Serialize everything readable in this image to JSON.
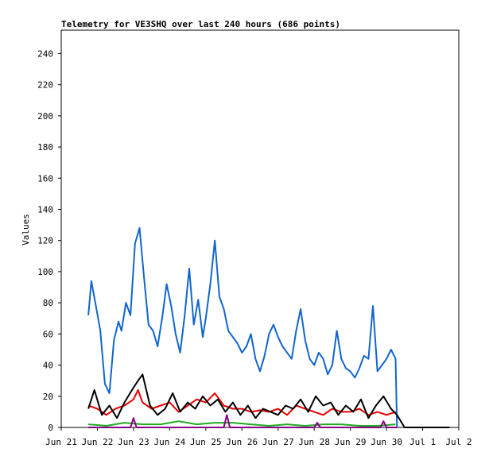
{
  "chart_data": {
    "type": "line",
    "title": "Telemetry for VE3SHQ over last 240 hours (686 points)",
    "xlabel": "",
    "ylabel": "Values",
    "grid": false,
    "legend": "none",
    "xlim": [
      "2024-06-21",
      "2024-07-02"
    ],
    "ylim": [
      0,
      255
    ],
    "x_ticks": [
      "2024-06-21",
      "2024-06-22",
      "2024-06-23",
      "2024-06-24",
      "2024-06-25",
      "2024-06-26",
      "2024-06-27",
      "2024-06-28",
      "2024-06-29",
      "2024-06-30",
      "2024-07-01",
      "2024-07-02"
    ],
    "x_tick_labels": [
      "Jun 21",
      "Jun 22",
      "Jun 23",
      "Jun 24",
      "Jun 25",
      "Jun 26",
      "Jun 27",
      "Jun 28",
      "Jun 29",
      "Jun 30",
      "Jul 1",
      "Jul 2"
    ],
    "y_ticks": [
      0,
      20,
      40,
      60,
      80,
      100,
      120,
      140,
      160,
      180,
      200,
      220,
      240
    ],
    "series": [
      {
        "color": "#1166cc",
        "x": [
          "2024-06-21T18:00",
          "2024-06-21T20:00",
          "2024-06-21T23:00",
          "2024-06-22T02:00",
          "2024-06-22T05:00",
          "2024-06-22T08:00",
          "2024-06-22T11:00",
          "2024-06-22T14:00",
          "2024-06-22T16:00",
          "2024-06-22T19:00",
          "2024-06-22T22:00",
          "2024-06-23T01:00",
          "2024-06-23T04:00",
          "2024-06-23T07:00",
          "2024-06-23T10:00",
          "2024-06-23T13:00",
          "2024-06-23T16:00",
          "2024-06-23T19:00",
          "2024-06-23T22:00",
          "2024-06-24T01:00",
          "2024-06-24T04:00",
          "2024-06-24T07:00",
          "2024-06-24T10:00",
          "2024-06-24T13:00",
          "2024-06-24T16:00",
          "2024-06-24T19:00",
          "2024-06-24T22:00",
          "2024-06-25T00:00",
          "2024-06-25T03:00",
          "2024-06-25T06:00",
          "2024-06-25T09:00",
          "2024-06-25T12:00",
          "2024-06-25T15:00",
          "2024-06-25T18:00",
          "2024-06-25T21:00",
          "2024-06-26T00:00",
          "2024-06-26T03:00",
          "2024-06-26T06:00",
          "2024-06-26T09:00",
          "2024-06-26T12:00",
          "2024-06-26T15:00",
          "2024-06-26T18:00",
          "2024-06-26T21:00",
          "2024-06-27T00:00",
          "2024-06-27T03:00",
          "2024-06-27T06:00",
          "2024-06-27T09:00",
          "2024-06-27T12:00",
          "2024-06-27T15:00",
          "2024-06-27T18:00",
          "2024-06-27T21:00",
          "2024-06-28T00:00",
          "2024-06-28T03:00",
          "2024-06-28T06:00",
          "2024-06-28T09:00",
          "2024-06-28T12:00",
          "2024-06-28T15:00",
          "2024-06-28T18:00",
          "2024-06-28T21:00",
          "2024-06-29T00:00",
          "2024-06-29T03:00",
          "2024-06-29T06:00",
          "2024-06-29T09:00",
          "2024-06-29T12:00",
          "2024-06-29T15:00",
          "2024-06-29T18:00",
          "2024-06-29T21:00",
          "2024-06-30T00:00",
          "2024-06-30T03:00",
          "2024-06-30T06:00",
          "2024-06-30T07:00"
        ],
        "y": [
          72,
          94,
          78,
          62,
          28,
          22,
          56,
          68,
          62,
          80,
          72,
          118,
          128,
          96,
          66,
          62,
          52,
          70,
          92,
          78,
          60,
          48,
          72,
          102,
          66,
          82,
          58,
          70,
          92,
          120,
          84,
          76,
          62,
          58,
          54,
          48,
          52,
          60,
          44,
          36,
          46,
          60,
          66,
          58,
          52,
          48,
          44,
          62,
          76,
          56,
          44,
          40,
          48,
          44,
          34,
          40,
          62,
          44,
          38,
          36,
          32,
          38,
          46,
          44,
          78,
          36,
          40,
          44,
          50,
          44,
          0
        ]
      },
      {
        "color": "#ee0000",
        "x": [
          "2024-06-21T18:00",
          "2024-06-22T00:00",
          "2024-06-22T06:00",
          "2024-06-22T12:00",
          "2024-06-22T18:00",
          "2024-06-23T00:00",
          "2024-06-23T03:00",
          "2024-06-23T06:00",
          "2024-06-23T12:00",
          "2024-06-23T18:00",
          "2024-06-24T00:00",
          "2024-06-24T06:00",
          "2024-06-24T12:00",
          "2024-06-24T18:00",
          "2024-06-25T00:00",
          "2024-06-25T06:00",
          "2024-06-25T12:00",
          "2024-06-25T18:00",
          "2024-06-26T00:00",
          "2024-06-26T06:00",
          "2024-06-26T12:00",
          "2024-06-26T18:00",
          "2024-06-27T00:00",
          "2024-06-27T06:00",
          "2024-06-27T12:00",
          "2024-06-27T18:00",
          "2024-06-28T00:00",
          "2024-06-28T06:00",
          "2024-06-28T12:00",
          "2024-06-28T18:00",
          "2024-06-29T00:00",
          "2024-06-29T06:00",
          "2024-06-29T12:00",
          "2024-06-29T18:00",
          "2024-06-30T00:00",
          "2024-06-30T06:00"
        ],
        "y": [
          14,
          12,
          8,
          12,
          14,
          18,
          24,
          16,
          12,
          14,
          16,
          10,
          14,
          18,
          16,
          22,
          14,
          12,
          12,
          10,
          11,
          10,
          12,
          8,
          14,
          12,
          10,
          8,
          12,
          10,
          10,
          12,
          8,
          10,
          8,
          10
        ]
      },
      {
        "color": "#000000",
        "x": [
          "2024-06-21T18:00",
          "2024-06-21T22:00",
          "2024-06-22T03:00",
          "2024-06-22T08:00",
          "2024-06-22T13:00",
          "2024-06-22T18:00",
          "2024-06-22T23:00",
          "2024-06-23T03:00",
          "2024-06-23T06:00",
          "2024-06-23T11:00",
          "2024-06-23T16:00",
          "2024-06-23T21:00",
          "2024-06-24T02:00",
          "2024-06-24T07:00",
          "2024-06-24T12:00",
          "2024-06-24T17:00",
          "2024-06-24T22:00",
          "2024-06-25T03:00",
          "2024-06-25T08:00",
          "2024-06-25T13:00",
          "2024-06-25T18:00",
          "2024-06-25T23:00",
          "2024-06-26T04:00",
          "2024-06-26T09:00",
          "2024-06-26T14:00",
          "2024-06-26T19:00",
          "2024-06-27T00:00",
          "2024-06-27T05:00",
          "2024-06-27T10:00",
          "2024-06-27T15:00",
          "2024-06-27T20:00",
          "2024-06-28T01:00",
          "2024-06-28T06:00",
          "2024-06-28T11:00",
          "2024-06-28T16:00",
          "2024-06-28T21:00",
          "2024-06-29T02:00",
          "2024-06-29T07:00",
          "2024-06-29T12:00",
          "2024-06-29T17:00",
          "2024-06-29T22:00",
          "2024-06-30T03:00",
          "2024-06-30T07:00",
          "2024-06-30T12:00",
          "2024-07-01T00:00",
          "2024-07-01T12:00",
          "2024-07-01T18:00"
        ],
        "y": [
          12,
          24,
          8,
          14,
          6,
          16,
          24,
          30,
          34,
          14,
          8,
          12,
          22,
          10,
          16,
          12,
          20,
          14,
          18,
          10,
          16,
          8,
          14,
          6,
          12,
          10,
          8,
          14,
          12,
          18,
          10,
          20,
          14,
          16,
          8,
          14,
          10,
          18,
          6,
          14,
          20,
          12,
          8,
          0,
          0,
          0,
          0
        ]
      },
      {
        "color": "#22aa22",
        "x": [
          "2024-06-21T18:00",
          "2024-06-22T06:00",
          "2024-06-22T18:00",
          "2024-06-23T06:00",
          "2024-06-23T18:00",
          "2024-06-24T06:00",
          "2024-06-24T18:00",
          "2024-06-25T06:00",
          "2024-06-25T18:00",
          "2024-06-26T06:00",
          "2024-06-26T18:00",
          "2024-06-27T06:00",
          "2024-06-27T18:00",
          "2024-06-28T06:00",
          "2024-06-28T18:00",
          "2024-06-29T06:00",
          "2024-06-29T18:00",
          "2024-06-30T06:00"
        ],
        "y": [
          2,
          1,
          3,
          2,
          2,
          4,
          2,
          3,
          3,
          2,
          1,
          2,
          1,
          2,
          2,
          1,
          1,
          2
        ]
      },
      {
        "color": "#880088",
        "x": [
          "2024-06-21T18:00",
          "2024-06-22T12:00",
          "2024-06-22T22:00",
          "2024-06-23T00:00",
          "2024-06-23T02:00",
          "2024-06-23T12:00",
          "2024-06-24T12:00",
          "2024-06-25T12:00",
          "2024-06-25T14:00",
          "2024-06-25T16:00",
          "2024-06-26T12:00",
          "2024-06-27T12:00",
          "2024-06-28T00:00",
          "2024-06-28T02:00",
          "2024-06-28T04:00",
          "2024-06-29T00:00",
          "2024-06-29T12:00",
          "2024-06-29T20:00",
          "2024-06-29T22:00",
          "2024-06-30T00:00",
          "2024-06-30T07:00"
        ],
        "y": [
          0,
          0,
          0,
          6,
          0,
          0,
          0,
          0,
          8,
          0,
          0,
          0,
          0,
          3,
          0,
          0,
          0,
          0,
          4,
          0,
          0
        ]
      }
    ]
  }
}
